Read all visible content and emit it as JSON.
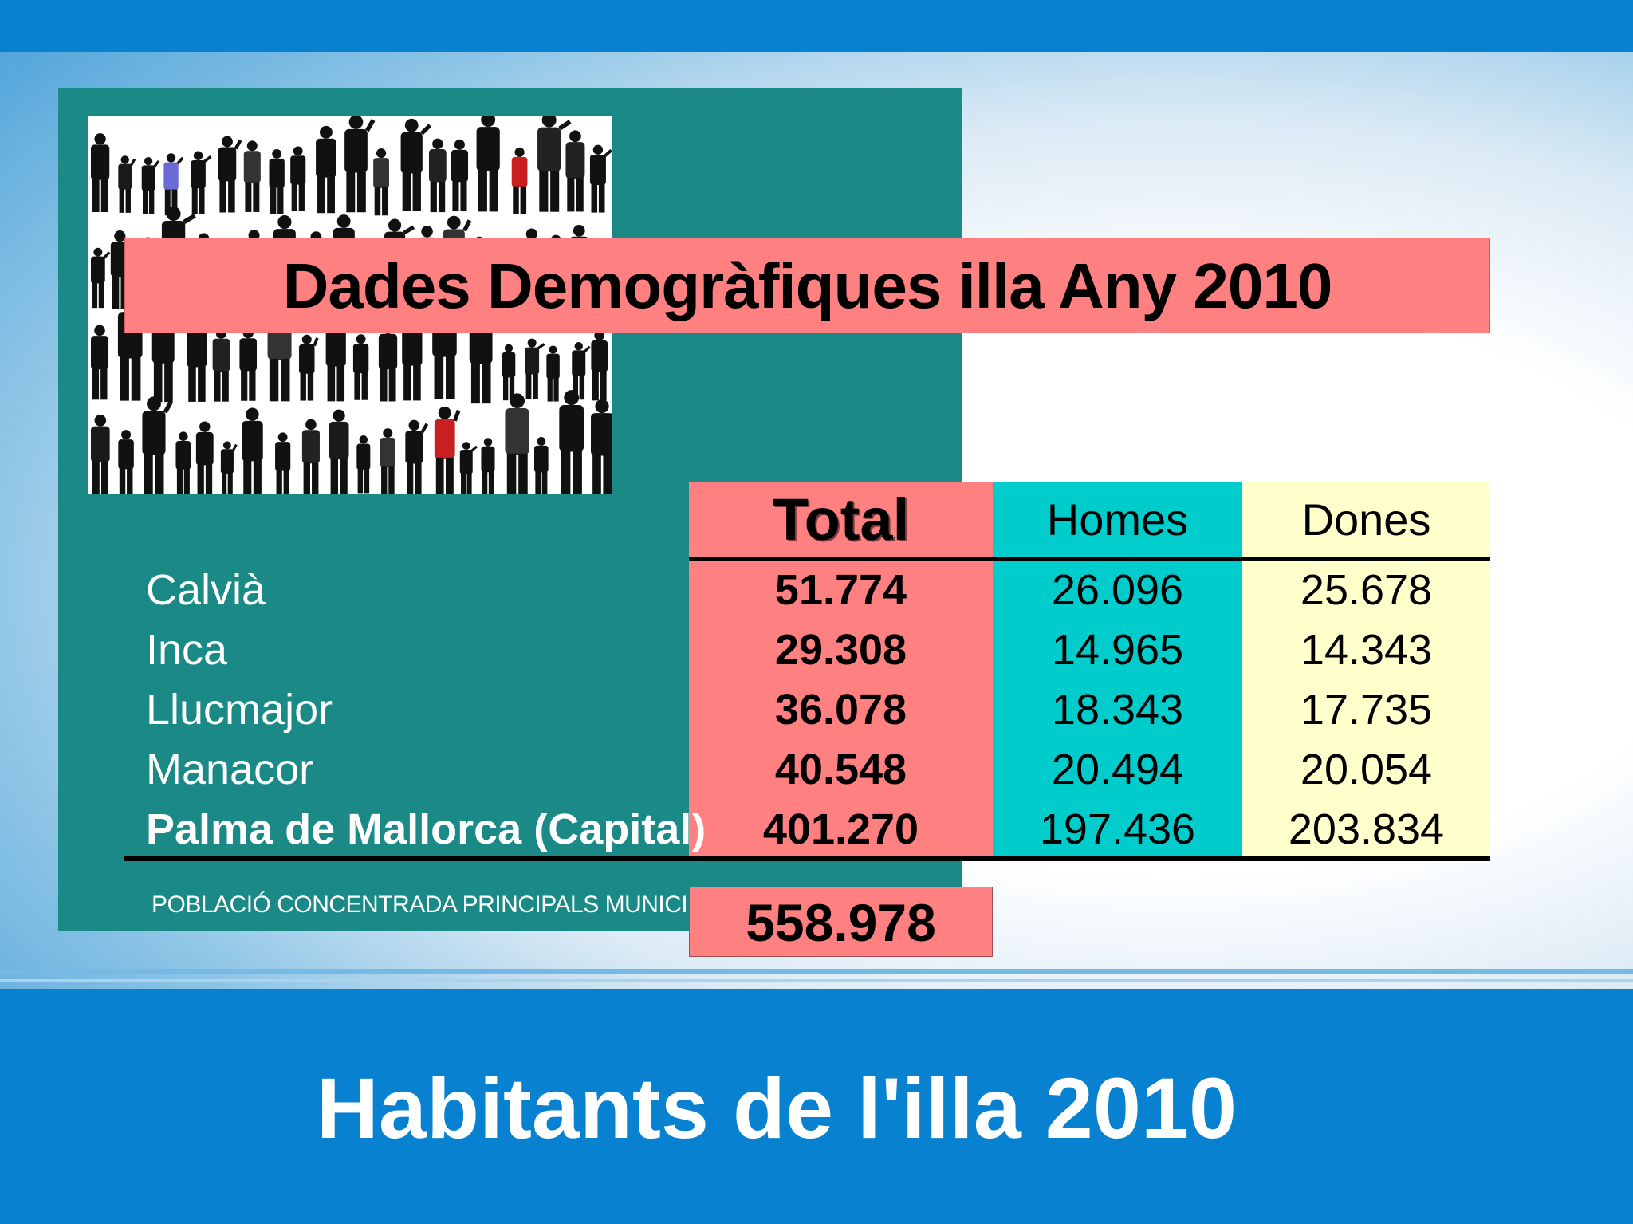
{
  "slide": {
    "title": "Dades Demogràfiques illa Any 2010",
    "footer_title": "Habitants de l'illa 2010",
    "image_icon": "people-silhouettes-image",
    "colors": {
      "blue_band": "#0882d0",
      "panel_teal": "#1b8a87",
      "total_column": "#ff8080",
      "homes_column": "#00cccc",
      "dones_column": "#ffffcc"
    }
  },
  "table": {
    "headers": {
      "total": "Total",
      "homes": "Homes",
      "dones": "Dones"
    },
    "rows": [
      {
        "municipality": "Calvià",
        "total": "51.774",
        "homes": "26.096",
        "dones": "25.678"
      },
      {
        "municipality": "Inca",
        "total": "29.308",
        "homes": "14.965",
        "dones": "14.343"
      },
      {
        "municipality": "Llucmajor",
        "total": "36.078",
        "homes": "18.343",
        "dones": "17.735"
      },
      {
        "municipality": "Manacor",
        "total": "40.548",
        "homes": "20.494",
        "dones": "20.054"
      },
      {
        "municipality": "Palma de Mallorca (Capital)",
        "total": "401.270",
        "homes": "197.436",
        "dones": "203.834"
      }
    ],
    "summary_label": "POBLACIÓ  CONCENTRADA  PRINCIPALS MUNICIPIS",
    "summary_total": "558.978"
  }
}
